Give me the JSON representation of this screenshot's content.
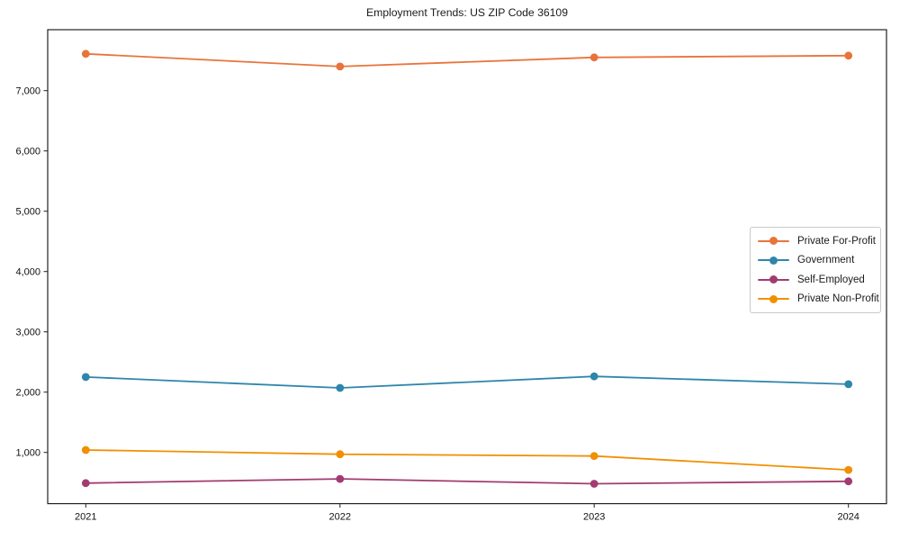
{
  "title": "Employment Trends: US ZIP Code 36109",
  "chart_data": {
    "type": "line",
    "title": "Employment Trends: US ZIP Code 36109",
    "xlabel": "",
    "ylabel": "",
    "x": [
      "2021",
      "2022",
      "2023",
      "2024"
    ],
    "series": [
      {
        "name": "Private For-Profit",
        "color": "#E8743B",
        "values": [
          7610,
          7400,
          7550,
          7580
        ]
      },
      {
        "name": "Government",
        "color": "#2E86AB",
        "values": [
          2250,
          2070,
          2260,
          2130
        ]
      },
      {
        "name": "Self-Employed",
        "color": "#A23B72",
        "values": [
          490,
          560,
          480,
          520
        ]
      },
      {
        "name": "Private Non-Profit",
        "color": "#F18F01",
        "values": [
          1040,
          970,
          940,
          710
        ]
      }
    ],
    "yticks": [
      1000,
      2000,
      3000,
      4000,
      5000,
      6000,
      7000
    ],
    "yticklabels": [
      "1,000",
      "2,000",
      "3,000",
      "4,000",
      "5,000",
      "6,000",
      "7,000"
    ],
    "ylim": [
      150,
      8010
    ],
    "grid": false,
    "marker": "o",
    "legend_position": "center right"
  }
}
